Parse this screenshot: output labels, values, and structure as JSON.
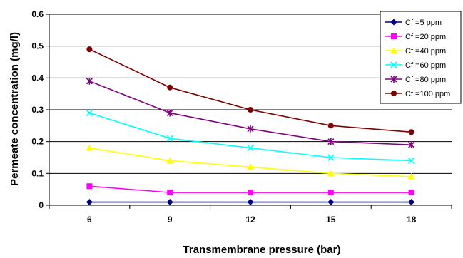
{
  "chart_data": {
    "type": "line",
    "xlabel": "Transmembrane pressure (bar)",
    "ylabel": "Permeate concentration (mg/l)",
    "x": [
      6,
      9,
      12,
      15,
      18
    ],
    "ylim": [
      0,
      0.6
    ],
    "yticks": [
      "0",
      "0.1",
      "0.2",
      "0.3",
      "0.4",
      "0.5",
      "0.6"
    ],
    "grid": "horizontal",
    "legend_position": "top-right",
    "series": [
      {
        "name": "Cf =5 ppm",
        "values": [
          0.01,
          0.01,
          0.01,
          0.01,
          0.01
        ],
        "color": "#00007f",
        "marker": "diamond"
      },
      {
        "name": "Cf =20 ppm",
        "values": [
          0.06,
          0.04,
          0.04,
          0.04,
          0.04
        ],
        "color": "#ff00ff",
        "marker": "square"
      },
      {
        "name": "Cf =40 ppm",
        "values": [
          0.18,
          0.14,
          0.12,
          0.1,
          0.09
        ],
        "color": "#ffff00",
        "marker": "triangle"
      },
      {
        "name": "Cf =60 ppm",
        "values": [
          0.29,
          0.21,
          0.18,
          0.15,
          0.14
        ],
        "color": "#00ffff",
        "marker": "x"
      },
      {
        "name": "Cf =80 ppm",
        "values": [
          0.39,
          0.29,
          0.24,
          0.2,
          0.19
        ],
        "color": "#7f007f",
        "marker": "star"
      },
      {
        "name": "Cf =100 ppm",
        "values": [
          0.49,
          0.37,
          0.3,
          0.25,
          0.23
        ],
        "color": "#7f0000",
        "marker": "circle"
      }
    ]
  }
}
